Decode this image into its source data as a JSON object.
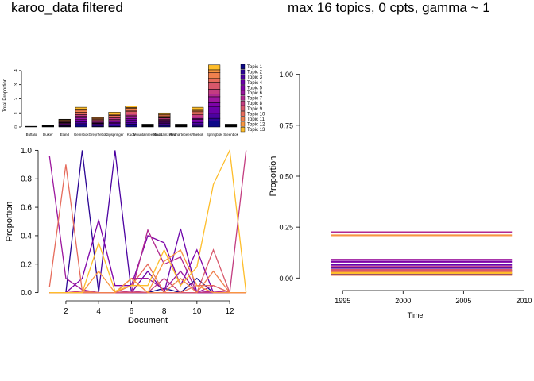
{
  "titles": {
    "left": "karoo_data filtered",
    "right": "max 16 topics, 0 cpts, gamma ~ 1"
  },
  "chart_data": [
    {
      "type": "bar",
      "stacked": true,
      "title": "",
      "xlabel": "",
      "ylabel": "Total Proportion",
      "ylim": [
        0,
        4.5
      ],
      "yticks": [
        0,
        1,
        2,
        3,
        4
      ],
      "categories": [
        "Buffalo",
        "Duiker",
        "Eland",
        "Gemsbok",
        "Grey rhebok",
        "Klipspringer",
        "Kudu",
        "Mountain reedbuck",
        "Mountain zebra",
        "Red hartebeest",
        "Rhebok",
        "Springbok",
        "Steenbok"
      ],
      "category_labels": [
        "Buffalo",
        "Duiker",
        "Eland",
        "Gemsbok",
        "Greyrhebok",
        "Klipspringer",
        "Kudu",
        "Mountainreedbuck",
        "Mountainzebra",
        "Redhartebeest",
        "Rhebok",
        "Springbok",
        "Steenbok"
      ],
      "totals": [
        0.05,
        0.1,
        0.55,
        1.4,
        0.7,
        1.05,
        1.5,
        0.2,
        1.0,
        0.2,
        1.4,
        4.4,
        0.2
      ],
      "legend": [
        "Topic 1",
        "Topic 2",
        "Topic 3",
        "Topic 4",
        "Topic 5",
        "Topic 6",
        "Topic 7",
        "Topic 8",
        "Topic 9",
        "Topic 10",
        "Topic 11",
        "Topic 12",
        "Topic 13"
      ],
      "legend_position": "right",
      "colors": [
        "#0d0887",
        "#2b0594",
        "#4c02a1",
        "#6a00a8",
        "#7e03a8",
        "#9c179e",
        "#b12a90",
        "#c33d80",
        "#d8576b",
        "#e66c5c",
        "#f0804e",
        "#f89540",
        "#febd2a"
      ]
    },
    {
      "type": "line",
      "title": "",
      "xlabel": "Document",
      "ylabel": "Proportion",
      "xlim": [
        0.5,
        13.5
      ],
      "ylim": [
        -0.03,
        1.03
      ],
      "xticks": [
        2,
        4,
        6,
        8,
        10,
        12
      ],
      "yticks": [
        0.0,
        0.2,
        0.4,
        0.6,
        0.8,
        1.0
      ],
      "x": [
        1,
        2,
        3,
        4,
        5,
        6,
        7,
        8,
        9,
        10,
        11,
        12,
        13
      ],
      "series": [
        {
          "color": "#0d0887",
          "values": [
            0,
            0,
            0,
            0,
            0,
            0,
            0,
            0.03,
            0,
            0.1,
            0,
            0,
            0
          ]
        },
        {
          "color": "#2b0594",
          "values": [
            0,
            0,
            1.0,
            0,
            0,
            0,
            0,
            0,
            0,
            0,
            0,
            0,
            0
          ]
        },
        {
          "color": "#4c02a1",
          "values": [
            0,
            0,
            0,
            0,
            1.0,
            0,
            0,
            0,
            0,
            0,
            0,
            0,
            0
          ]
        },
        {
          "color": "#6a00a8",
          "values": [
            0,
            0,
            0,
            0,
            0,
            0,
            0.15,
            0,
            0.45,
            0,
            0,
            0,
            0
          ]
        },
        {
          "color": "#7e03a8",
          "values": [
            0,
            0,
            0.1,
            0.51,
            0.05,
            0.05,
            0.4,
            0.35,
            0.05,
            0.3,
            0,
            0,
            0
          ]
        },
        {
          "color": "#9c179e",
          "values": [
            0.96,
            0.1,
            0.02,
            0,
            0,
            0.1,
            0.1,
            0.02,
            0.15,
            0,
            0.05,
            0,
            0
          ]
        },
        {
          "color": "#b12a90",
          "values": [
            0,
            0,
            0,
            0,
            0,
            0,
            0.44,
            0.2,
            0.25,
            0,
            0.01,
            0,
            0
          ]
        },
        {
          "color": "#c33d80",
          "values": [
            0,
            0,
            0.01,
            0,
            0,
            0.01,
            0,
            0.1,
            0,
            0,
            0,
            0,
            1.0
          ]
        },
        {
          "color": "#d8576b",
          "values": [
            0,
            0,
            0,
            0,
            0,
            0,
            0,
            0,
            0,
            0,
            0.3,
            0,
            0
          ]
        },
        {
          "color": "#e66c5c",
          "values": [
            0.04,
            0.9,
            0.01,
            0,
            0,
            0.05,
            0.2,
            0,
            0,
            0.05,
            0.05,
            0,
            0
          ]
        },
        {
          "color": "#f0804e",
          "values": [
            0,
            0,
            0,
            0,
            0,
            0.1,
            0,
            0,
            0.1,
            0,
            0.15,
            0,
            0
          ]
        },
        {
          "color": "#f89540",
          "values": [
            0,
            0,
            0,
            0.15,
            0,
            0.1,
            0,
            0.22,
            0.3,
            0.05,
            0,
            0,
            0
          ]
        },
        {
          "color": "#febd2a",
          "values": [
            0,
            0,
            0,
            0.35,
            0.01,
            0.05,
            0.05,
            0.3,
            0.05,
            0.18,
            0.76,
            1.0,
            0
          ]
        }
      ]
    },
    {
      "type": "line",
      "title": "",
      "xlabel": "Time",
      "ylabel": "Proportion",
      "xlim": [
        1991.7,
        2010.3
      ],
      "ylim": [
        -0.03,
        1.03
      ],
      "xticks": [
        1995,
        2000,
        2005,
        2010
      ],
      "yticks": [
        0.0,
        0.25,
        0.5,
        0.75,
        1.0
      ],
      "x_range": [
        1994,
        2009
      ],
      "series": [
        {
          "color": "#0d0887",
          "value": 0.02
        },
        {
          "color": "#2b0594",
          "value": 0.035
        },
        {
          "color": "#4c02a1",
          "value": 0.05
        },
        {
          "color": "#6a00a8",
          "value": 0.065
        },
        {
          "color": "#7e03a8",
          "value": 0.08
        },
        {
          "color": "#9c179e",
          "value": 0.09
        },
        {
          "color": "#b12a90",
          "value": 0.225
        },
        {
          "color": "#c33d80",
          "value": 0.055
        },
        {
          "color": "#d8576b",
          "value": 0.04
        },
        {
          "color": "#e66c5c",
          "value": 0.03
        },
        {
          "color": "#f0804e",
          "value": 0.015
        },
        {
          "color": "#f89540",
          "value": 0.21
        },
        {
          "color": "#febd2a",
          "value": 0.025
        }
      ]
    }
  ]
}
